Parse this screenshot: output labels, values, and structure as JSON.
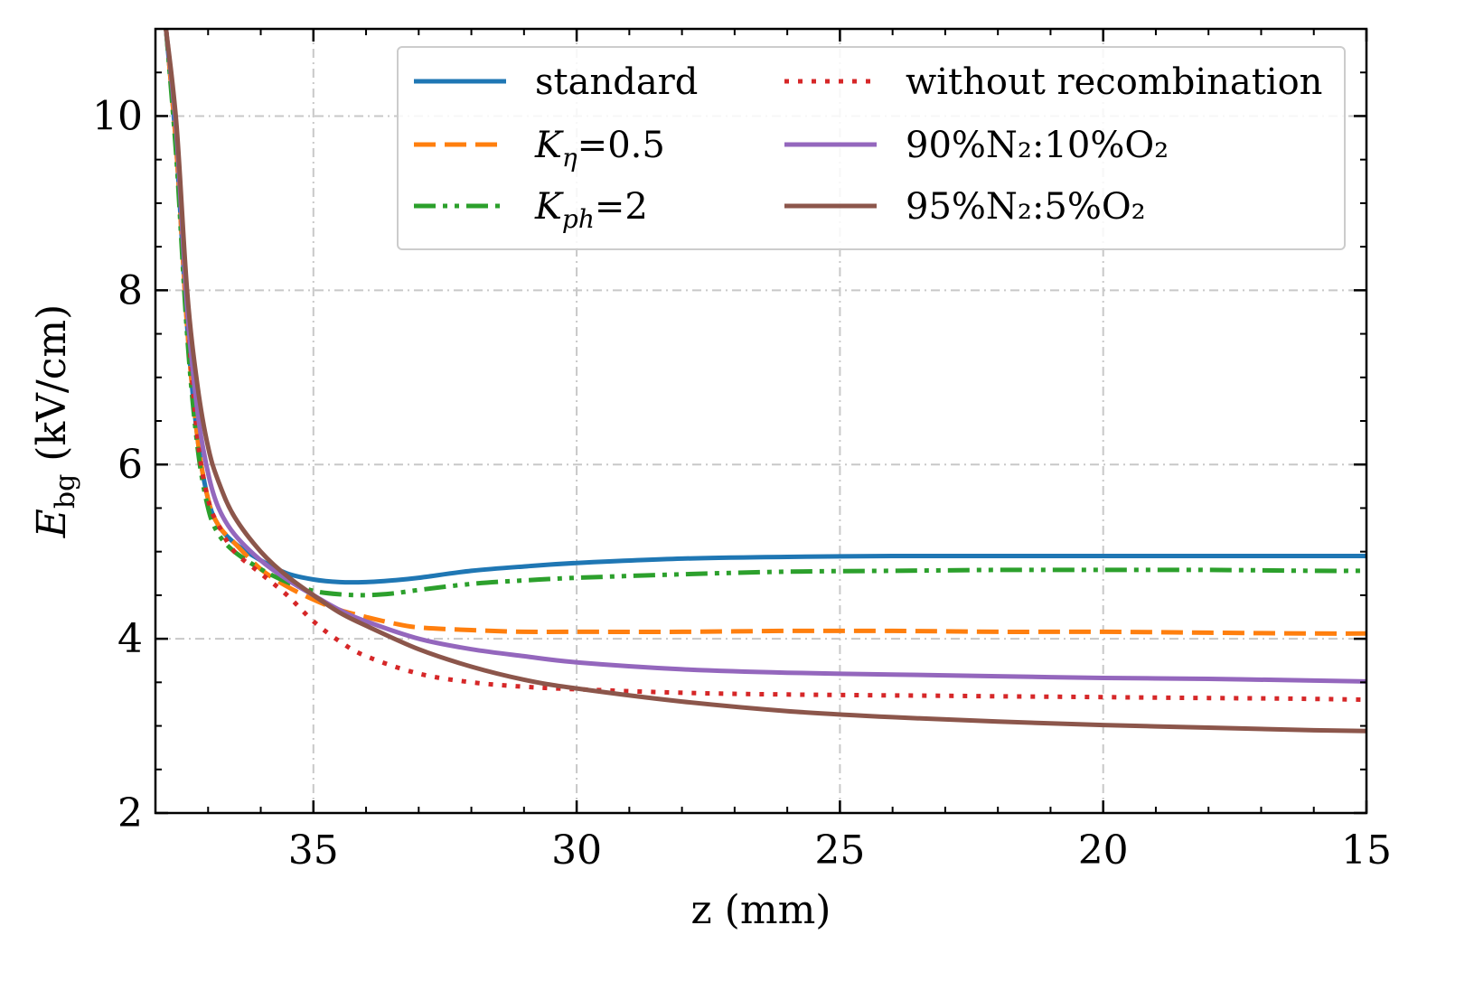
{
  "chart_data": {
    "type": "line",
    "title": "",
    "xlabel": "z (mm)",
    "ylabel": {
      "symbol": "E",
      "subscript": "bg",
      "unit": "(kV/cm)"
    },
    "xlim": [
      38,
      15
    ],
    "ylim": [
      2,
      11
    ],
    "x_ticks": [
      35,
      30,
      25,
      20,
      15
    ],
    "x_tick_labels": [
      "35",
      "30",
      "25",
      "20",
      "15"
    ],
    "y_ticks": [
      2,
      4,
      6,
      8,
      10
    ],
    "y_tick_labels": [
      "2",
      "4",
      "6",
      "8",
      "10"
    ],
    "grid": true,
    "legend_position": "top-right",
    "series": [
      {
        "key": "standard",
        "label": {
          "text": "standard"
        },
        "color": "#1f77b4",
        "style": "solid",
        "x": [
          37.8,
          37.6,
          37.4,
          37.2,
          37.0,
          36.8,
          36.5,
          36.0,
          35.5,
          35.0,
          34.5,
          34.0,
          33.5,
          33.0,
          32.0,
          31.0,
          30.0,
          28.0,
          26.0,
          24.0,
          22.0,
          20.0,
          18.0,
          16.0,
          15.0
        ],
        "y": [
          11.0,
          9.6,
          7.6,
          6.3,
          5.6,
          5.3,
          5.1,
          4.9,
          4.75,
          4.68,
          4.65,
          4.65,
          4.67,
          4.7,
          4.78,
          4.83,
          4.87,
          4.92,
          4.94,
          4.95,
          4.95,
          4.95,
          4.95,
          4.95,
          4.95
        ]
      },
      {
        "key": "k_eta",
        "label": {
          "symbol": "K",
          "subscript": "η",
          "value": "=0.5"
        },
        "color": "#ff7f0e",
        "style": "dashed",
        "x": [
          37.8,
          37.6,
          37.4,
          37.2,
          37.0,
          36.8,
          36.5,
          36.0,
          35.5,
          35.0,
          34.5,
          34.0,
          33.5,
          33.0,
          32.0,
          31.0,
          30.0,
          28.0,
          26.0,
          24.0,
          22.0,
          20.0,
          18.0,
          16.0,
          15.0
        ],
        "y": [
          11.0,
          9.6,
          7.6,
          6.3,
          5.6,
          5.3,
          5.1,
          4.8,
          4.6,
          4.45,
          4.33,
          4.25,
          4.18,
          4.13,
          4.1,
          4.08,
          4.08,
          4.08,
          4.09,
          4.09,
          4.08,
          4.08,
          4.07,
          4.06,
          4.06
        ]
      },
      {
        "key": "k_ph",
        "label": {
          "symbol": "K",
          "subscript": "ph",
          "value": "=2"
        },
        "color": "#2ca02c",
        "style": "dashdotdot",
        "x": [
          37.8,
          37.6,
          37.4,
          37.2,
          37.0,
          36.8,
          36.5,
          36.0,
          35.5,
          35.0,
          34.5,
          34.0,
          33.5,
          33.0,
          32.0,
          31.0,
          30.0,
          28.0,
          26.0,
          24.0,
          22.0,
          20.0,
          18.0,
          16.0,
          15.0
        ],
        "y": [
          11.0,
          9.5,
          7.5,
          6.2,
          5.5,
          5.2,
          5.0,
          4.8,
          4.65,
          4.55,
          4.51,
          4.5,
          4.52,
          4.56,
          4.63,
          4.67,
          4.7,
          4.74,
          4.77,
          4.78,
          4.79,
          4.79,
          4.79,
          4.78,
          4.78
        ]
      },
      {
        "key": "no_recomb",
        "label": {
          "text": "without recombination"
        },
        "color": "#d62728",
        "style": "dotted",
        "x": [
          37.8,
          37.6,
          37.4,
          37.2,
          37.0,
          36.8,
          36.5,
          36.0,
          35.5,
          35.0,
          34.5,
          34.0,
          33.0,
          32.0,
          31.0,
          30.0,
          28.0,
          26.0,
          24.0,
          22.0,
          20.0,
          18.0,
          16.0,
          15.0
        ],
        "y": [
          11.0,
          9.8,
          7.8,
          6.3,
          5.6,
          5.3,
          5.0,
          4.75,
          4.5,
          4.2,
          3.97,
          3.8,
          3.6,
          3.5,
          3.45,
          3.42,
          3.38,
          3.36,
          3.35,
          3.34,
          3.33,
          3.32,
          3.31,
          3.3
        ]
      },
      {
        "key": "n2_90",
        "label": {
          "text": "90%N₂:10%O₂"
        },
        "color": "#9467bd",
        "style": "solid",
        "x": [
          37.8,
          37.6,
          37.4,
          37.2,
          37.0,
          36.8,
          36.5,
          36.0,
          35.5,
          35.0,
          34.5,
          34.0,
          33.0,
          32.0,
          31.0,
          30.0,
          28.0,
          26.0,
          24.0,
          22.0,
          20.0,
          18.0,
          16.0,
          15.0
        ],
        "y": [
          11.0,
          9.8,
          7.8,
          6.6,
          5.9,
          5.5,
          5.2,
          4.9,
          4.68,
          4.5,
          4.33,
          4.2,
          4.0,
          3.88,
          3.8,
          3.73,
          3.65,
          3.61,
          3.59,
          3.57,
          3.55,
          3.54,
          3.52,
          3.51
        ]
      },
      {
        "key": "n2_95",
        "label": {
          "text": "95%N₂:5%O₂"
        },
        "color": "#8c564b",
        "style": "solid",
        "x": [
          37.8,
          37.6,
          37.4,
          37.2,
          37.0,
          36.8,
          36.5,
          36.0,
          35.5,
          35.0,
          34.5,
          34.0,
          33.0,
          32.0,
          31.0,
          30.0,
          28.0,
          26.0,
          24.0,
          22.0,
          20.0,
          18.0,
          16.0,
          15.0
        ],
        "y": [
          11.0,
          9.9,
          8.0,
          6.9,
          6.2,
          5.8,
          5.4,
          5.0,
          4.72,
          4.5,
          4.3,
          4.15,
          3.88,
          3.68,
          3.53,
          3.43,
          3.28,
          3.17,
          3.1,
          3.05,
          3.01,
          2.98,
          2.95,
          2.94
        ]
      }
    ]
  }
}
